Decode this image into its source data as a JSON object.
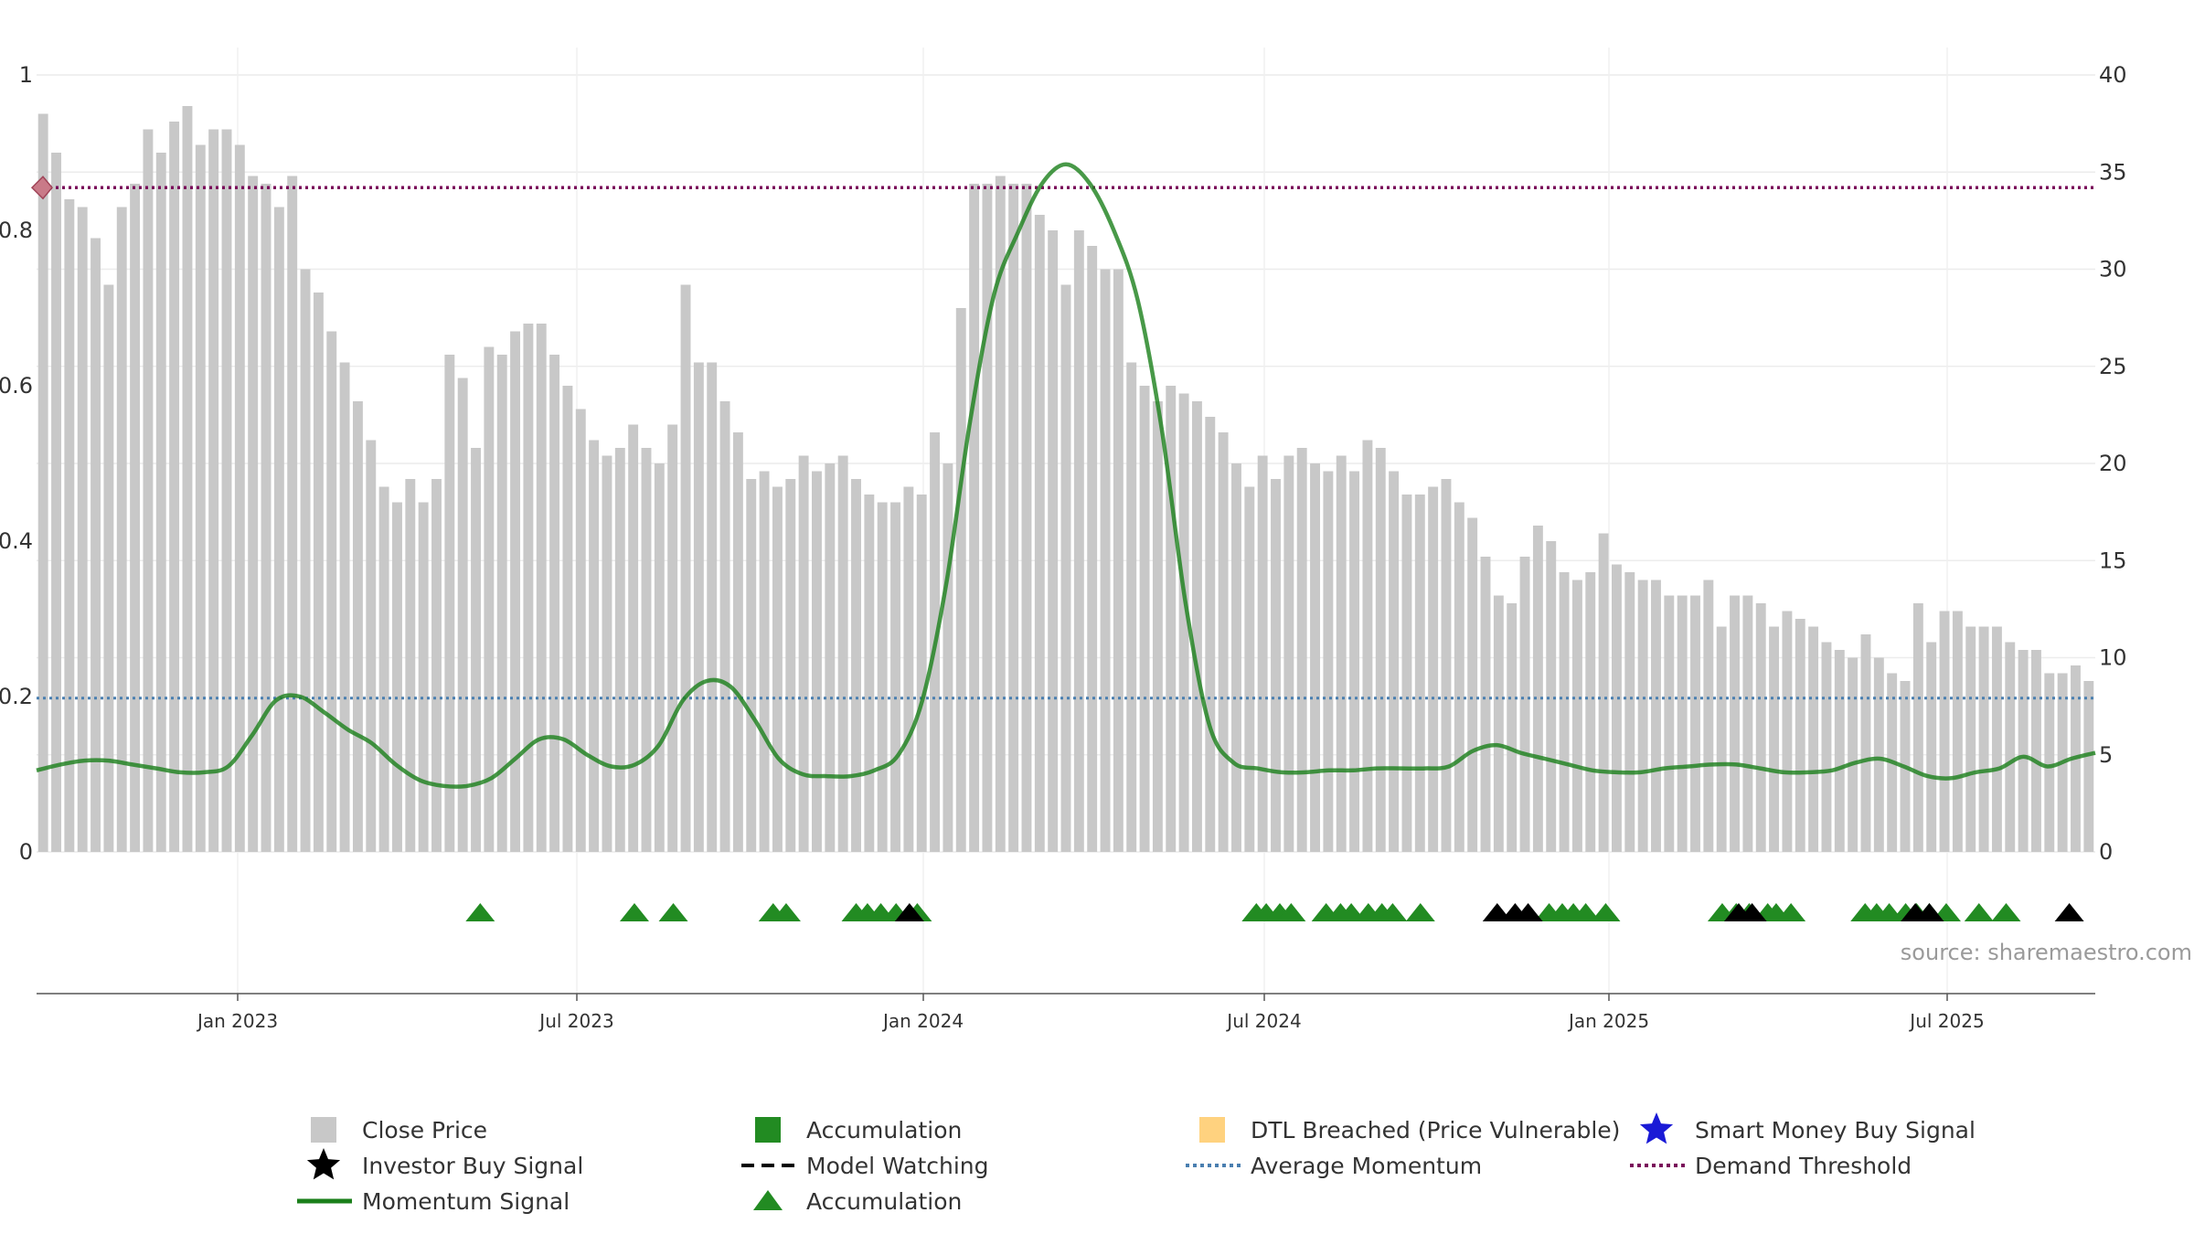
{
  "chart_data": {
    "type": "bar",
    "source_label": "source: sharemaestro.com",
    "x_ticks": [
      "Jan 2023",
      "Jul 2023",
      "Jan 2024",
      "Jul 2024",
      "Jan 2025",
      "Jul 2025"
    ],
    "y_left": {
      "ticks": [
        "0",
        "0.2",
        "0.4",
        "0.6",
        "0.8",
        "1"
      ],
      "range": [
        0,
        1
      ]
    },
    "y_right": {
      "ticks": [
        "0",
        "5",
        "10",
        "15",
        "20",
        "25",
        "30",
        "35",
        "40"
      ],
      "range": [
        0,
        40
      ]
    },
    "grid": true,
    "legend_position": "bottom",
    "colors": {
      "close_price": "#c8c8c8",
      "accumulation": "#228b22",
      "dtl_breached": "#ffd27f",
      "momentum": "#1a7f1a",
      "average_momentum": "#4a7fb0",
      "demand_threshold": "#7a0a5a",
      "investor_signal": "#000000",
      "smart_money": "#1a1ad6"
    },
    "average_momentum_level": 0.198,
    "demand_threshold_level": 0.855,
    "bar_categories": [
      "close",
      "close",
      "close",
      "close",
      "close",
      "close",
      "close",
      "close",
      "close",
      "close",
      "close",
      "close",
      "close",
      "close",
      "close",
      "close",
      "close",
      "close",
      "close",
      "close",
      "close",
      "close",
      "close",
      "close",
      "close",
      "close",
      "close",
      "close",
      "close",
      "close",
      "close",
      "close",
      "close",
      "close",
      "close",
      "close",
      "close",
      "close",
      "close",
      "close",
      "close",
      "close",
      "close",
      "close",
      "close",
      "close",
      "close",
      "close",
      "close",
      "close",
      "close",
      "close",
      "close",
      "close",
      "close",
      "close",
      "close",
      "close",
      "close",
      "close",
      "close",
      "close",
      "close",
      "close",
      "close",
      "close",
      "close",
      "close",
      "close",
      "close",
      "close",
      "close",
      "close",
      "close",
      "close",
      "close",
      "close",
      "close",
      "close",
      "close",
      "close",
      "close",
      "close",
      "close",
      "close",
      "close",
      "close",
      "close",
      "close",
      "close",
      "close",
      "close",
      "close",
      "close",
      "close",
      "close",
      "close",
      "close",
      "close",
      "close",
      "close",
      "close",
      "close",
      "close",
      "close",
      "close",
      "close",
      "close",
      "close",
      "close",
      "close",
      "close",
      "close",
      "close",
      "close",
      "close",
      "close",
      "close",
      "close",
      "close",
      "close",
      "close",
      "close",
      "close",
      "close",
      "close",
      "close",
      "close",
      "close",
      "close",
      "close",
      "close",
      "close",
      "close",
      "close",
      "close",
      "close",
      "close",
      "close",
      "close",
      "close",
      "close",
      "close",
      "close",
      "close",
      "close",
      "close",
      "close",
      "close",
      "close",
      "close",
      "close",
      "close",
      "close",
      "close",
      "close",
      "close"
    ],
    "bar_values": [
      0.95,
      0.9,
      0.84,
      0.83,
      0.79,
      0.73,
      0.83,
      0.86,
      0.93,
      0.9,
      0.94,
      0.96,
      0.91,
      0.93,
      0.93,
      0.91,
      0.87,
      0.86,
      0.83,
      0.87,
      0.75,
      0.72,
      0.67,
      0.63,
      0.58,
      0.53,
      0.47,
      0.45,
      0.48,
      0.45,
      0.48,
      0.64,
      0.61,
      0.52,
      0.65,
      0.64,
      0.67,
      0.68,
      0.68,
      0.64,
      0.6,
      0.57,
      0.53,
      0.51,
      0.52,
      0.55,
      0.52,
      0.5,
      0.55,
      0.73,
      0.63,
      0.63,
      0.58,
      0.54,
      0.48,
      0.49,
      0.47,
      0.48,
      0.51,
      0.49,
      0.5,
      0.51,
      0.48,
      0.46,
      0.45,
      0.45,
      0.47,
      0.46,
      0.54,
      0.5,
      0.7,
      0.86,
      0.86,
      0.87,
      0.86,
      0.86,
      0.82,
      0.8,
      0.73,
      0.8,
      0.78,
      0.75,
      0.75,
      0.63,
      0.6,
      0.58,
      0.6,
      0.59,
      0.58,
      0.56,
      0.54,
      0.5,
      0.47,
      0.51,
      0.48,
      0.51,
      0.52,
      0.5,
      0.49,
      0.51,
      0.49,
      0.53,
      0.52,
      0.49,
      0.46,
      0.46,
      0.47,
      0.48,
      0.45,
      0.43,
      0.38,
      0.33,
      0.32,
      0.38,
      0.42,
      0.4,
      0.36,
      0.35,
      0.36,
      0.41,
      0.37,
      0.36,
      0.35,
      0.35,
      0.33,
      0.33,
      0.33,
      0.35,
      0.29,
      0.33,
      0.33,
      0.32,
      0.29,
      0.31,
      0.3,
      0.29,
      0.27,
      0.26,
      0.25,
      0.28,
      0.25,
      0.23,
      0.22,
      0.32,
      0.27,
      0.31,
      0.31,
      0.29,
      0.29,
      0.29,
      0.27,
      0.26,
      0.26,
      0.23,
      0.23,
      0.24,
      0.22
    ],
    "momentum_series": [
      4.2,
      4.5,
      4.7,
      4.7,
      4.5,
      4.3,
      4.1,
      4.1,
      4.4,
      6.0,
      7.8,
      8.0,
      7.2,
      6.3,
      5.6,
      4.5,
      3.7,
      3.4,
      3.4,
      3.8,
      4.8,
      5.8,
      5.8,
      5.0,
      4.4,
      4.5,
      5.5,
      7.8,
      8.8,
      8.5,
      6.8,
      4.8,
      4.0,
      3.9,
      3.9,
      4.2,
      5.0,
      7.8,
      13.8,
      22.2,
      28.7,
      31.9,
      34.4,
      35.4,
      34.4,
      32.0,
      28.4,
      21.8,
      12.8,
      6.5,
      4.6,
      4.3,
      4.1,
      4.1,
      4.2,
      4.2,
      4.3,
      4.3,
      4.3,
      4.4,
      5.2,
      5.5,
      5.1,
      4.8,
      4.5,
      4.2,
      4.1,
      4.1,
      4.3,
      4.4,
      4.5,
      4.5,
      4.3,
      4.1,
      4.1,
      4.2,
      4.6,
      4.8,
      4.4,
      3.9,
      3.8,
      4.1,
      4.3,
      4.9,
      4.4,
      4.8,
      5.1
    ],
    "accumulation_triangles": [
      0.2155,
      0.2904,
      0.3093,
      0.3578,
      0.3641,
      0.3981,
      0.4036,
      0.4101,
      0.4175,
      0.4278,
      0.5925,
      0.5973,
      0.6039,
      0.6094,
      0.6264,
      0.6334,
      0.6386,
      0.6469,
      0.6535,
      0.6587,
      0.6722,
      0.7347,
      0.7411,
      0.7465,
      0.7525,
      0.7622,
      0.8188,
      0.8256,
      0.8319,
      0.8409,
      0.845,
      0.8522,
      0.8882,
      0.8938,
      0.8999,
      0.9079,
      0.9132,
      0.9194,
      0.9276,
      0.9435,
      0.9567
    ],
    "investor_triangles": [
      0.424,
      0.7095,
      0.7182,
      0.7245,
      0.8268,
      0.8333,
      0.9126,
      0.9194,
      0.9874
    ],
    "legend": [
      {
        "label": "Close Price",
        "marker": "square",
        "color_key": "close_price"
      },
      {
        "label": "Accumulation",
        "marker": "square",
        "color_key": "accumulation"
      },
      {
        "label": "DTL Breached (Price Vulnerable)",
        "marker": "square",
        "color_key": "dtl_breached"
      },
      {
        "label": "Smart Money Buy Signal",
        "marker": "star",
        "color_key": "smart_money"
      },
      {
        "label": "Investor Buy Signal",
        "marker": "star",
        "color_key": "investor_signal"
      },
      {
        "label": "Model Watching",
        "marker": "dash",
        "color_key": "investor_signal"
      },
      {
        "label": "Average Momentum",
        "marker": "dotted",
        "color_key": "average_momentum"
      },
      {
        "label": "Demand Threshold",
        "marker": "dotted",
        "color_key": "demand_threshold"
      },
      {
        "label": "Momentum Signal",
        "marker": "line",
        "color_key": "momentum"
      },
      {
        "label": "Accumulation",
        "marker": "triangle",
        "color_key": "accumulation"
      }
    ]
  }
}
